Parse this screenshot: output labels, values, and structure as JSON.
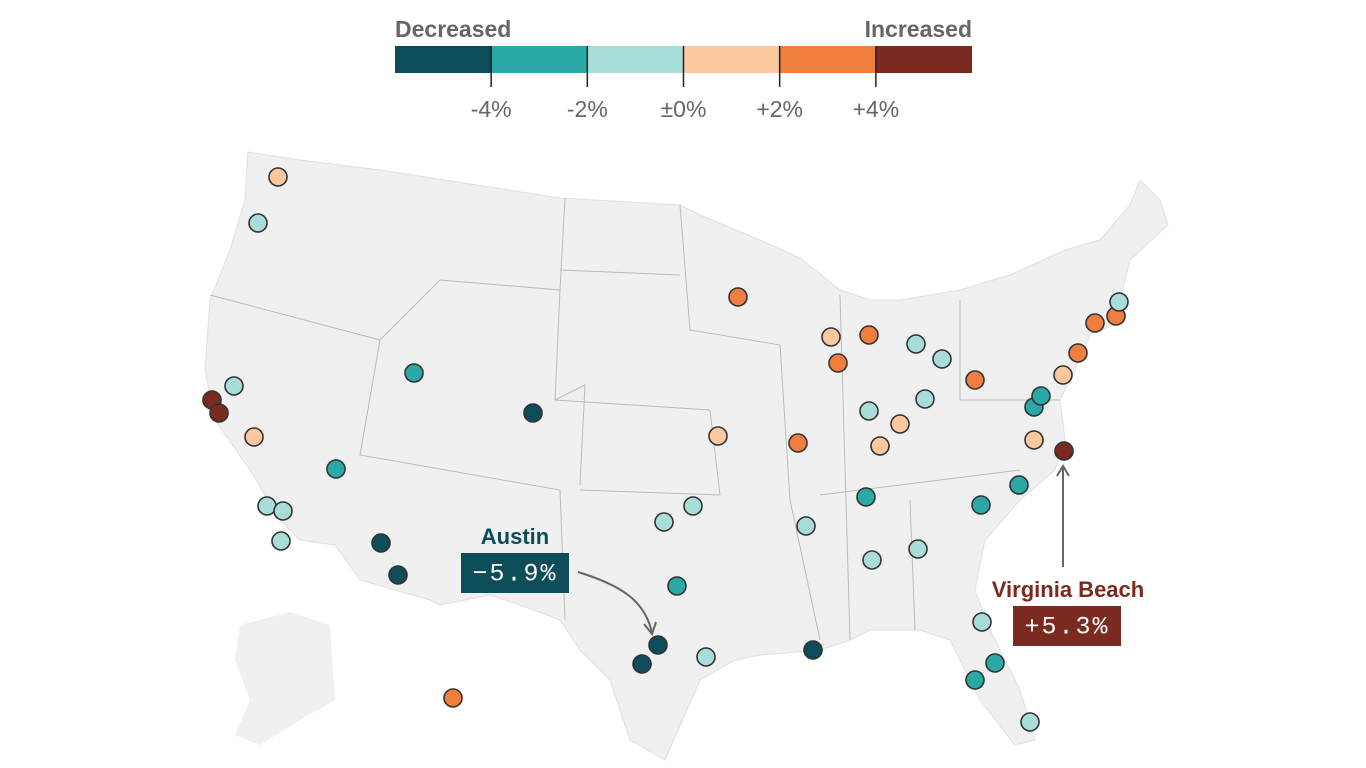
{
  "legend": {
    "left_label": "Decreased",
    "right_label": "Increased",
    "colors": [
      "#0d4d5a",
      "#2aa9a6",
      "#a9ddd9",
      "#fbc8a0",
      "#f07e3e",
      "#7b2a1f"
    ],
    "ticks": [
      "-4%",
      "-2%",
      "±0%",
      "+2%",
      "+4%"
    ]
  },
  "annotations": [
    {
      "city": "Austin",
      "value": "−5.9%",
      "color": "#0d4d5a"
    },
    {
      "city": "Virginia Beach",
      "value": "+5.3%",
      "color": "#7b2a1f"
    }
  ]
}
